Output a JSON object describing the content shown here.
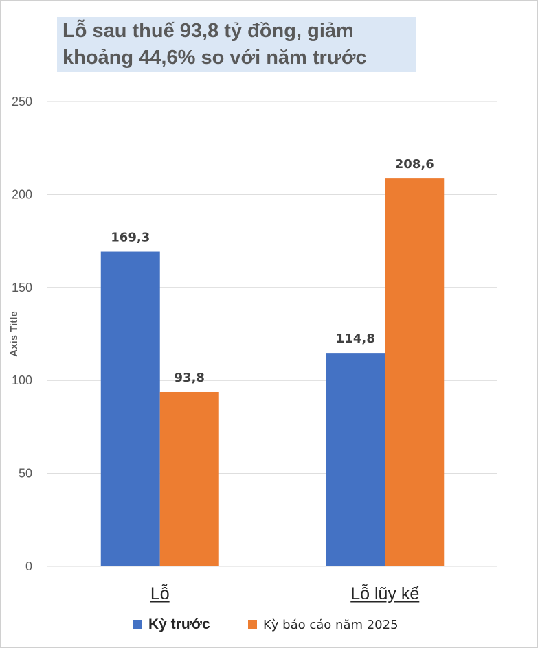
{
  "chart_data": {
    "type": "bar",
    "title": "Lỗ sau thuế 93,8 tỷ đồng, giảm khoảng 44,6% so với năm trước",
    "title_lines": [
      "Lỗ sau thuế 93,8 tỷ đồng, giảm",
      "khoảng 44,6% so với năm trước"
    ],
    "categories": [
      "Lỗ",
      "Lỗ lũy kế"
    ],
    "series": [
      {
        "name": "Kỳ trước",
        "values": [
          169.3,
          114.8
        ],
        "labels": [
          "169,3",
          "114,8"
        ],
        "color": "#4472c4"
      },
      {
        "name": "Kỳ báo cáo năm 2025",
        "values": [
          93.8,
          208.6
        ],
        "labels": [
          "93,8",
          "208,6"
        ],
        "color": "#ed7d31"
      }
    ],
    "xlabel": "",
    "ylabel": "Axis Title",
    "ylim": [
      0,
      250
    ],
    "yticks": [
      0,
      50,
      100,
      150,
      200,
      250
    ],
    "grid": true,
    "legend": "bottom"
  },
  "colors": {
    "gridline": "#d9d9d9",
    "title_bg": "#dbe7f5",
    "title_text": "#595959"
  }
}
